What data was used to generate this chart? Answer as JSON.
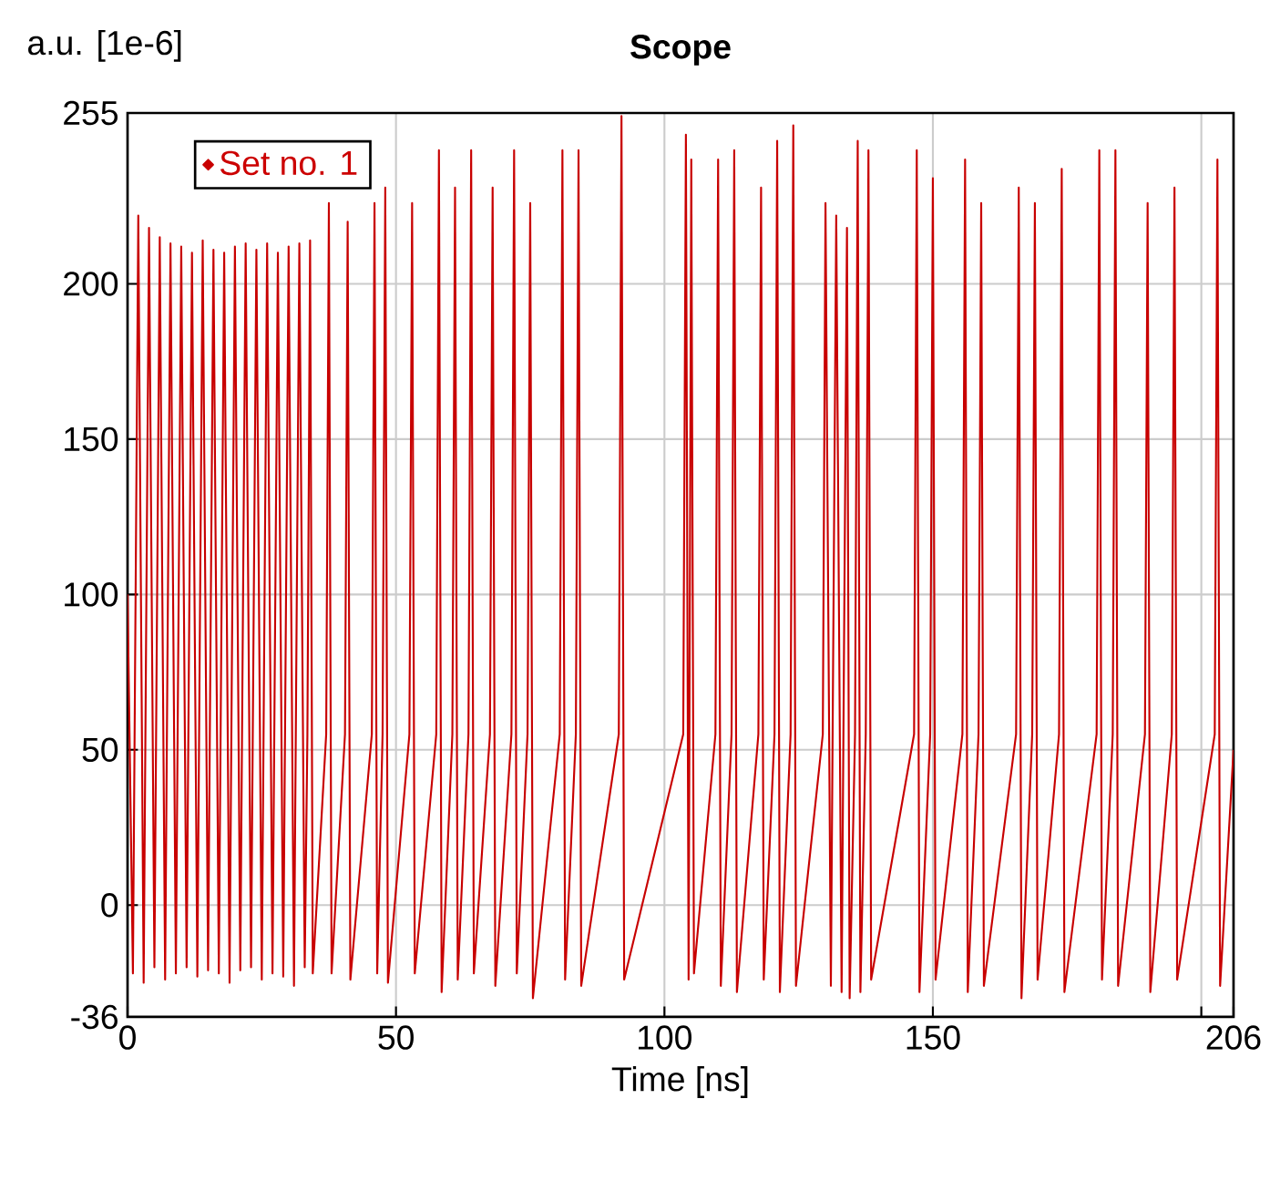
{
  "chart_data": {
    "type": "line",
    "title": "Scope",
    "xlabel": "Time [ns]",
    "ylabel": "a.u. [1e-6]",
    "xlim": [
      0,
      206
    ],
    "xticks": [
      0,
      50,
      100,
      150,
      {
        "value": 200,
        "label": null
      },
      206
    ],
    "ylim": [
      -36,
      255
    ],
    "yticks": [
      -36,
      0,
      50,
      100,
      150,
      200,
      255
    ],
    "grid": true,
    "legend": "top left",
    "series": [
      {
        "name": "Set no. 1",
        "color": "#c80000",
        "x": [
          0,
          1,
          2,
          3,
          4,
          5,
          6,
          7,
          8,
          9,
          10,
          11,
          12,
          13,
          14,
          15,
          16,
          17,
          18,
          19,
          20,
          21,
          22,
          23,
          24,
          25,
          26,
          27,
          28,
          29,
          30,
          31,
          32,
          33,
          33.5,
          34,
          34.5,
          37,
          37.5,
          38,
          40.5,
          41,
          41.5,
          45.5,
          46,
          46.5,
          47.5,
          48,
          48.5,
          52.5,
          53,
          53.5,
          57.5,
          58,
          58.5,
          60.5,
          61,
          61.5,
          63.5,
          64,
          64.5,
          67.5,
          68,
          68.5,
          71.5,
          72,
          72.5,
          74.5,
          75,
          75.5,
          80.5,
          81,
          81.5,
          83.5,
          84,
          84.5,
          91.5,
          92,
          92.5,
          103.5,
          104,
          104.5,
          105,
          105.5,
          109.5,
          110,
          110.5,
          112.5,
          113,
          113.5,
          117.5,
          118,
          118.5,
          120.5,
          121,
          121.5,
          123.5,
          124,
          124.5,
          129.5,
          130,
          131,
          132,
          133,
          134,
          134.5,
          135.5,
          136,
          136.5,
          137.5,
          138,
          138.5,
          146.5,
          147,
          147.5,
          149.5,
          150,
          150.5,
          155.5,
          156,
          156.5,
          158.5,
          159,
          159.5,
          165.5,
          166,
          166.5,
          168.5,
          169,
          169.5,
          173.5,
          174,
          174.5,
          180.5,
          181,
          181.5,
          183.5,
          184,
          184.5,
          189.5,
          190,
          190.5,
          194.5,
          195,
          195.5,
          202.5,
          203,
          203.5,
          206
        ],
        "values": [
          100,
          -22,
          222,
          -25,
          218,
          -20,
          215,
          -24,
          213,
          -22,
          212,
          -20,
          210,
          -23,
          214,
          -21,
          211,
          -22,
          210,
          -25,
          212,
          -21,
          213,
          -20,
          211,
          -24,
          213,
          -22,
          210,
          -23,
          212,
          -26,
          213,
          -20,
          55,
          214,
          -22,
          55,
          226,
          -22,
          55,
          220,
          -24,
          55,
          226,
          -22,
          55,
          231,
          -25,
          55,
          226,
          -22,
          55,
          243,
          -28,
          55,
          231,
          -24,
          55,
          243,
          -22,
          55,
          231,
          -26,
          55,
          243,
          -22,
          55,
          226,
          -30,
          55,
          243,
          -24,
          55,
          243,
          -26,
          55,
          254,
          -24,
          55,
          248,
          -24,
          240,
          -22,
          55,
          240,
          -26,
          55,
          243,
          -28,
          55,
          231,
          -24,
          55,
          246,
          -28,
          55,
          251,
          -26,
          55,
          226,
          -26,
          222,
          -28,
          218,
          -30,
          55,
          246,
          -28,
          55,
          243,
          -24,
          55,
          243,
          -28,
          55,
          234,
          -24,
          55,
          240,
          -28,
          55,
          226,
          -26,
          55,
          231,
          -30,
          55,
          226,
          -24,
          55,
          237,
          -28,
          55,
          243,
          -24,
          55,
          243,
          -26,
          55,
          226,
          -28,
          55,
          231,
          -24,
          55,
          240,
          -26,
          50
        ]
      }
    ]
  }
}
